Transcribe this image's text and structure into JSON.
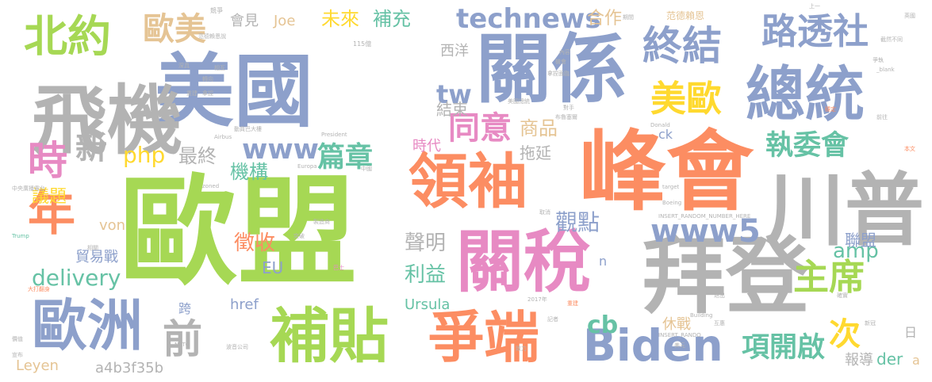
{
  "palette": {
    "green": "#a6d854",
    "orange": "#fc8d62",
    "blue": "#8da0cb",
    "gray": "#b3b3b3",
    "teal": "#66c2a5",
    "pink": "#e78ac3",
    "tan": "#e5c494",
    "yellow": "#ffd92f"
  },
  "words": [
    {
      "text": "歐盟",
      "color": "green"
    },
    {
      "text": "美國",
      "color": "blue"
    },
    {
      "text": "峰會",
      "color": "orange"
    },
    {
      "text": "關係",
      "color": "blue"
    },
    {
      "text": "飛機",
      "color": "gray"
    },
    {
      "text": "拜登",
      "color": "gray"
    },
    {
      "text": "川普",
      "color": "gray"
    },
    {
      "text": "關稅",
      "color": "pink"
    },
    {
      "text": "領袖",
      "color": "orange"
    },
    {
      "text": "總統",
      "color": "blue"
    },
    {
      "text": "補貼",
      "color": "green"
    },
    {
      "text": "爭端",
      "color": "orange"
    },
    {
      "text": "歐洲",
      "color": "blue"
    },
    {
      "text": "年",
      "color": "orange"
    },
    {
      "text": "北約",
      "color": "green"
    },
    {
      "text": "Biden",
      "color": "blue"
    },
    {
      "text": "終結",
      "color": "blue"
    },
    {
      "text": "路透社",
      "color": "blue"
    },
    {
      "text": "美歐",
      "color": "yellow"
    },
    {
      "text": "主席",
      "color": "green"
    },
    {
      "text": "前",
      "color": "gray"
    },
    {
      "text": "時",
      "color": "pink"
    },
    {
      "text": "technews",
      "color": "blue"
    },
    {
      "text": "www5",
      "color": "blue"
    },
    {
      "text": "執委會",
      "color": "teal"
    },
    {
      "text": "歐美",
      "color": "tan"
    },
    {
      "text": "同意",
      "color": "pink"
    },
    {
      "text": "項開啟",
      "color": "teal"
    },
    {
      "text": "篇章",
      "color": "teal"
    },
    {
      "text": "www",
      "color": "blue"
    },
    {
      "text": "次",
      "color": "yellow"
    },
    {
      "text": "新",
      "color": "gray"
    },
    {
      "text": "delivery",
      "color": "teal"
    },
    {
      "text": "未來",
      "color": "yellow"
    },
    {
      "text": "補充",
      "color": "teal"
    },
    {
      "text": "tw",
      "color": "blue"
    },
    {
      "text": "php",
      "color": "yellow"
    },
    {
      "text": "最終",
      "color": "gray"
    },
    {
      "text": "商品",
      "color": "tan"
    },
    {
      "text": "cb",
      "color": "teal"
    },
    {
      "text": "amp",
      "color": "teal"
    },
    {
      "text": "觀點",
      "color": "blue"
    },
    {
      "text": "聲明",
      "color": "gray"
    },
    {
      "text": "利益",
      "color": "teal"
    },
    {
      "text": "機構",
      "color": "teal"
    },
    {
      "text": "徵收",
      "color": "orange"
    },
    {
      "text": "議題",
      "color": "yellow"
    },
    {
      "text": "合作",
      "color": "tan"
    },
    {
      "text": "結束",
      "color": "gray"
    },
    {
      "text": "時代",
      "color": "pink"
    },
    {
      "text": "拖延",
      "color": "gray"
    },
    {
      "text": "會見",
      "color": "gray"
    },
    {
      "text": "Joe",
      "color": "tan"
    },
    {
      "text": "西洋",
      "color": "gray"
    },
    {
      "text": "貿易戰",
      "color": "blue"
    },
    {
      "text": "EU",
      "color": "blue"
    },
    {
      "text": "von",
      "color": "tan"
    },
    {
      "text": "休戰",
      "color": "tan"
    },
    {
      "text": "聯盟",
      "color": "blue"
    },
    {
      "text": "der",
      "color": "teal"
    },
    {
      "text": "報導",
      "color": "gray"
    },
    {
      "text": "href",
      "color": "blue"
    },
    {
      "text": "Ursula",
      "color": "teal"
    },
    {
      "text": "Leyen",
      "color": "tan"
    },
    {
      "text": "a4b3f35b",
      "color": "gray"
    },
    {
      "text": "跨",
      "color": "blue"
    },
    {
      "text": "n",
      "color": "blue"
    },
    {
      "text": "ck",
      "color": "blue"
    },
    {
      "text": "日",
      "color": "gray"
    },
    {
      "text": "a",
      "color": "tan"
    },
    {
      "text": "范德賴恩",
      "color": "tan"
    },
    {
      "text": "競爭",
      "color": "gray"
    },
    {
      "text": "范德賴恩說",
      "color": "gray"
    },
    {
      "text": "115億",
      "color": "gray"
    },
    {
      "text": "期間",
      "color": "gray"
    },
    {
      "text": "英國",
      "color": "gray"
    },
    {
      "text": "截然不同",
      "color": "gray"
    },
    {
      "text": "_blank",
      "color": "gray"
    },
    {
      "text": "前往",
      "color": "gray"
    },
    {
      "text": "爭執",
      "color": "gray"
    },
    {
      "text": "上一",
      "color": "gray"
    },
    {
      "text": "深具",
      "color": "gray"
    },
    {
      "text": "轉向",
      "color": "gray"
    },
    {
      "text": "拿捏",
      "color": "gray"
    },
    {
      "text": "相互",
      "color": "gray"
    },
    {
      "text": "內容",
      "color": "gray"
    },
    {
      "text": "機會",
      "color": "gray"
    },
    {
      "text": "拿捏面臨",
      "color": "gray"
    },
    {
      "text": "重建",
      "color": "gray"
    },
    {
      "text": "對手",
      "color": "gray"
    },
    {
      "text": "布魯塞爾",
      "color": "gray"
    },
    {
      "text": "Airbus",
      "color": "gray"
    },
    {
      "text": "President",
      "color": "gray"
    },
    {
      "text": "Donald",
      "color": "gray"
    },
    {
      "text": "中國",
      "color": "gray"
    },
    {
      "text": "動員巴大樓",
      "color": "gray"
    },
    {
      "text": "中央廣播電台",
      "color": "gray"
    },
    {
      "text": "zoned",
      "color": "gray"
    },
    {
      "text": "target",
      "color": "gray"
    },
    {
      "text": "Europa",
      "color": "gray"
    },
    {
      "text": "Boeing",
      "color": "gray"
    },
    {
      "text": "INSERT_RANDOM_NUMBER_HERE",
      "color": "gray"
    },
    {
      "text": "Trump",
      "color": "teal"
    },
    {
      "text": "製造商",
      "color": "gray"
    },
    {
      "text": "突破",
      "color": "gray"
    },
    {
      "text": "巴士",
      "color": "pink"
    },
    {
      "text": "大打翻身",
      "color": "orange"
    },
    {
      "text": "2017年",
      "color": "gray"
    },
    {
      "text": "波音公司",
      "color": "gray"
    },
    {
      "text": "NATO",
      "color": "gray"
    },
    {
      "text": "INSERT_RANDO",
      "color": "gray"
    },
    {
      "text": "Building",
      "color": "gray"
    },
    {
      "text": "致力",
      "color": "gray"
    },
    {
      "text": "美元",
      "color": "gray"
    },
    {
      "text": "本文",
      "color": "orange"
    },
    {
      "text": "價值",
      "color": "gray"
    },
    {
      "text": "新冠",
      "color": "gray"
    },
    {
      "text": "互惠",
      "color": "gray"
    },
    {
      "text": "退出",
      "color": "gray"
    },
    {
      "text": "穩定",
      "color": "orange"
    },
    {
      "text": "重建",
      "color": "orange"
    },
    {
      "text": "記者",
      "color": "gray"
    },
    {
      "text": "確實",
      "color": "gray"
    },
    {
      "text": "取消",
      "color": "gray"
    },
    {
      "text": "相關",
      "color": "gray"
    },
    {
      "text": "宣布",
      "color": "gray"
    },
    {
      "text": "美國總統",
      "color": "gray"
    }
  ]
}
